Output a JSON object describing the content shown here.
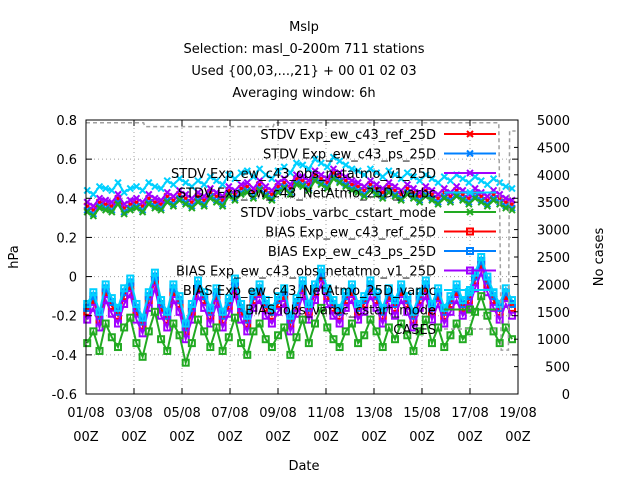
{
  "chart_data": {
    "type": "line",
    "title": "Mslp",
    "subtitle_lines": [
      "Selection: masl_0-200m    711 stations",
      "Used {00,03,...,21} + 00 01 02 03",
      "Averaging window:  6h"
    ],
    "xlabel": "Date",
    "ylabel": "hPa",
    "y2label": "No cases",
    "ylim": [
      -0.6,
      0.8
    ],
    "y2lim": [
      0,
      5000
    ],
    "xlim": [
      0,
      18
    ],
    "yticks": [
      "0.8",
      "0.6",
      "0.4",
      "0.2",
      "0",
      "-0.2",
      "-0.4",
      "-0.6"
    ],
    "y2ticks": [
      "5000",
      "4500",
      "4000",
      "3500",
      "3000",
      "2500",
      "2000",
      "1500",
      "1000",
      "500",
      "0"
    ],
    "xticks": [
      {
        "top": "01/08",
        "bottom": "00Z"
      },
      {
        "top": "03/08",
        "bottom": "00Z"
      },
      {
        "top": "05/08",
        "bottom": "00Z"
      },
      {
        "top": "07/08",
        "bottom": "00Z"
      },
      {
        "top": "09/08",
        "bottom": "00Z"
      },
      {
        "top": "11/08",
        "bottom": "00Z"
      },
      {
        "top": "13/08",
        "bottom": "00Z"
      },
      {
        "top": "15/08",
        "bottom": "00Z"
      },
      {
        "top": "17/08",
        "bottom": "00Z"
      },
      {
        "top": "19/08",
        "bottom": "00Z"
      }
    ],
    "grid": true,
    "legend_position": "top-right",
    "series": [
      {
        "name": "STDV Exp_ew_c43_ref_25D",
        "color": "#ff0000",
        "marker": "x",
        "axis": "y1",
        "values": [
          0.36,
          0.34,
          0.38,
          0.37,
          0.36,
          0.4,
          0.35,
          0.37,
          0.38,
          0.36,
          0.4,
          0.38,
          0.37,
          0.41,
          0.39,
          0.42,
          0.4,
          0.38,
          0.41,
          0.39,
          0.43,
          0.41,
          0.39,
          0.44,
          0.42,
          0.45,
          0.46,
          0.43,
          0.47,
          0.44,
          0.42,
          0.46,
          0.48,
          0.45,
          0.5,
          0.49,
          0.47,
          0.52,
          0.5,
          0.48,
          0.53,
          0.51,
          0.49,
          0.47,
          0.46,
          0.44,
          0.47,
          0.45,
          0.43,
          0.46,
          0.44,
          0.42,
          0.45,
          0.43,
          0.41,
          0.44,
          0.42,
          0.4,
          0.43,
          0.41,
          0.44,
          0.42,
          0.4,
          0.43,
          0.41,
          0.39,
          0.42,
          0.4,
          0.38,
          0.37
        ]
      },
      {
        "name": "STDV Exp_ew_c43_ps_25D",
        "color": "#0080ff",
        "marker": "x",
        "axis": "y1",
        "values": [
          0.34,
          0.32,
          0.36,
          0.35,
          0.34,
          0.38,
          0.33,
          0.35,
          0.36,
          0.34,
          0.38,
          0.36,
          0.35,
          0.39,
          0.37,
          0.4,
          0.38,
          0.36,
          0.39,
          0.37,
          0.41,
          0.39,
          0.37,
          0.42,
          0.4,
          0.43,
          0.44,
          0.41,
          0.45,
          0.42,
          0.4,
          0.44,
          0.46,
          0.43,
          0.48,
          0.47,
          0.45,
          0.5,
          0.48,
          0.46,
          0.51,
          0.49,
          0.47,
          0.45,
          0.44,
          0.42,
          0.45,
          0.43,
          0.41,
          0.44,
          0.42,
          0.4,
          0.43,
          0.41,
          0.39,
          0.42,
          0.4,
          0.38,
          0.41,
          0.39,
          0.42,
          0.4,
          0.38,
          0.41,
          0.39,
          0.37,
          0.4,
          0.38,
          0.36,
          0.35
        ]
      },
      {
        "name": "STDV Exp_ew_c43_obs_netatmo_v1_25D",
        "color": "#a000ff",
        "marker": "x",
        "axis": "y1",
        "values": [
          0.38,
          0.36,
          0.4,
          0.39,
          0.38,
          0.42,
          0.37,
          0.39,
          0.4,
          0.38,
          0.42,
          0.4,
          0.39,
          0.43,
          0.41,
          0.44,
          0.42,
          0.4,
          0.43,
          0.41,
          0.45,
          0.43,
          0.41,
          0.46,
          0.44,
          0.47,
          0.48,
          0.45,
          0.49,
          0.46,
          0.44,
          0.48,
          0.5,
          0.47,
          0.52,
          0.51,
          0.49,
          0.54,
          0.52,
          0.5,
          0.55,
          0.53,
          0.51,
          0.49,
          0.48,
          0.46,
          0.49,
          0.47,
          0.45,
          0.48,
          0.46,
          0.44,
          0.47,
          0.45,
          0.43,
          0.46,
          0.44,
          0.42,
          0.45,
          0.43,
          0.46,
          0.44,
          0.42,
          0.45,
          0.43,
          0.41,
          0.44,
          0.42,
          0.4,
          0.39
        ]
      },
      {
        "name": "STDV Exp_ew_c43_NetAtmo_25D_varbc",
        "color": "#00d0ff",
        "marker": "x",
        "axis": "y1",
        "values": [
          0.44,
          0.42,
          0.46,
          0.45,
          0.44,
          0.48,
          0.43,
          0.45,
          0.46,
          0.44,
          0.48,
          0.46,
          0.45,
          0.49,
          0.47,
          0.5,
          0.48,
          0.46,
          0.49,
          0.47,
          0.51,
          0.49,
          0.47,
          0.52,
          0.5,
          0.53,
          0.54,
          0.51,
          0.55,
          0.52,
          0.5,
          0.54,
          0.56,
          0.53,
          0.58,
          0.57,
          0.55,
          0.6,
          0.58,
          0.56,
          0.61,
          0.59,
          0.57,
          0.55,
          0.54,
          0.52,
          0.55,
          0.53,
          0.51,
          0.54,
          0.52,
          0.5,
          0.53,
          0.51,
          0.49,
          0.52,
          0.5,
          0.48,
          0.51,
          0.49,
          0.52,
          0.5,
          0.48,
          0.51,
          0.49,
          0.47,
          0.5,
          0.48,
          0.46,
          0.45
        ]
      },
      {
        "name": "STDV iobs_varbc_cstart_mode",
        "color": "#22aa22",
        "marker": "x",
        "axis": "y1",
        "values": [
          0.33,
          0.31,
          0.35,
          0.34,
          0.33,
          0.37,
          0.32,
          0.34,
          0.35,
          0.33,
          0.37,
          0.35,
          0.34,
          0.38,
          0.36,
          0.39,
          0.37,
          0.35,
          0.38,
          0.36,
          0.4,
          0.38,
          0.36,
          0.41,
          0.39,
          0.42,
          0.43,
          0.4,
          0.44,
          0.41,
          0.39,
          0.43,
          0.45,
          0.42,
          0.47,
          0.46,
          0.44,
          0.49,
          0.47,
          0.45,
          0.5,
          0.48,
          0.46,
          0.44,
          0.43,
          0.41,
          0.44,
          0.42,
          0.4,
          0.43,
          0.41,
          0.39,
          0.42,
          0.4,
          0.38,
          0.41,
          0.39,
          0.37,
          0.4,
          0.38,
          0.41,
          0.39,
          0.37,
          0.4,
          0.38,
          0.36,
          0.39,
          0.37,
          0.35,
          0.34
        ]
      },
      {
        "name": "BIAS Exp_ew_c43_ref_25D",
        "color": "#ff0000",
        "marker": "square",
        "axis": "y1",
        "values": [
          -0.18,
          -0.12,
          -0.22,
          -0.08,
          -0.15,
          -0.2,
          -0.1,
          -0.05,
          -0.18,
          -0.25,
          -0.12,
          -0.02,
          -0.16,
          -0.22,
          -0.08,
          -0.14,
          -0.28,
          -0.18,
          -0.06,
          -0.12,
          -0.2,
          -0.1,
          -0.22,
          -0.15,
          -0.05,
          -0.18,
          -0.24,
          -0.12,
          -0.08,
          -0.16,
          -0.2,
          -0.14,
          -0.1,
          -0.24,
          -0.15,
          -0.06,
          -0.18,
          -0.08,
          0.0,
          -0.1,
          -0.16,
          -0.2,
          -0.12,
          -0.08,
          -0.18,
          -0.14,
          -0.06,
          -0.12,
          -0.2,
          -0.1,
          -0.16,
          -0.08,
          -0.14,
          -0.22,
          -0.12,
          -0.06,
          -0.18,
          -0.1,
          -0.2,
          -0.14,
          -0.08,
          -0.16,
          -0.12,
          -0.02,
          0.06,
          -0.04,
          -0.12,
          -0.18,
          -0.1,
          -0.16
        ]
      },
      {
        "name": "BIAS Exp_ew_c43_ps_25D",
        "color": "#0080ff",
        "marker": "square",
        "axis": "y1",
        "values": [
          -0.16,
          -0.1,
          -0.2,
          -0.06,
          -0.13,
          -0.18,
          -0.08,
          -0.03,
          -0.16,
          -0.23,
          -0.1,
          0.0,
          -0.14,
          -0.2,
          -0.06,
          -0.12,
          -0.26,
          -0.16,
          -0.04,
          -0.1,
          -0.18,
          -0.08,
          -0.2,
          -0.13,
          -0.03,
          -0.16,
          -0.22,
          -0.1,
          -0.06,
          -0.14,
          -0.18,
          -0.12,
          -0.08,
          -0.22,
          -0.13,
          -0.04,
          -0.16,
          -0.06,
          0.02,
          -0.08,
          -0.14,
          -0.18,
          -0.1,
          -0.06,
          -0.16,
          -0.12,
          -0.04,
          -0.1,
          -0.18,
          -0.08,
          -0.14,
          -0.06,
          -0.12,
          -0.2,
          -0.1,
          -0.04,
          -0.16,
          -0.08,
          -0.18,
          -0.12,
          -0.06,
          -0.14,
          -0.1,
          0.0,
          0.08,
          -0.02,
          -0.1,
          -0.16,
          -0.08,
          -0.14
        ]
      },
      {
        "name": "BIAS Exp_ew_c43_obs_netatmo_v1_25D",
        "color": "#a000ff",
        "marker": "square",
        "axis": "y1",
        "values": [
          -0.22,
          -0.16,
          -0.26,
          -0.12,
          -0.19,
          -0.24,
          -0.14,
          -0.09,
          -0.22,
          -0.29,
          -0.16,
          -0.06,
          -0.2,
          -0.26,
          -0.12,
          -0.18,
          -0.32,
          -0.22,
          -0.1,
          -0.16,
          -0.24,
          -0.14,
          -0.26,
          -0.19,
          -0.09,
          -0.22,
          -0.28,
          -0.16,
          -0.12,
          -0.2,
          -0.24,
          -0.18,
          -0.14,
          -0.28,
          -0.19,
          -0.1,
          -0.22,
          -0.12,
          -0.04,
          -0.14,
          -0.2,
          -0.24,
          -0.16,
          -0.12,
          -0.22,
          -0.18,
          -0.1,
          -0.16,
          -0.24,
          -0.14,
          -0.2,
          -0.12,
          -0.18,
          -0.26,
          -0.16,
          -0.1,
          -0.22,
          -0.14,
          -0.24,
          -0.18,
          -0.12,
          -0.2,
          -0.16,
          -0.06,
          0.02,
          -0.08,
          -0.16,
          -0.22,
          -0.14,
          -0.2
        ]
      },
      {
        "name": "BIAS Exp_ew_c43_NetAtmo_25D_varbc",
        "color": "#00d0ff",
        "marker": "square",
        "axis": "y1",
        "values": [
          -0.14,
          -0.08,
          -0.18,
          -0.04,
          -0.11,
          -0.16,
          -0.06,
          -0.01,
          -0.14,
          -0.21,
          -0.08,
          0.02,
          -0.12,
          -0.18,
          -0.04,
          -0.1,
          -0.24,
          -0.14,
          -0.02,
          -0.08,
          -0.16,
          -0.06,
          -0.18,
          -0.11,
          -0.01,
          -0.14,
          -0.2,
          -0.08,
          -0.04,
          -0.12,
          -0.16,
          -0.1,
          -0.06,
          -0.2,
          -0.11,
          -0.02,
          -0.14,
          -0.04,
          0.04,
          -0.06,
          -0.12,
          -0.16,
          -0.08,
          -0.04,
          -0.14,
          -0.1,
          -0.02,
          -0.08,
          -0.16,
          -0.06,
          -0.12,
          -0.04,
          -0.1,
          -0.18,
          -0.08,
          -0.02,
          -0.14,
          -0.06,
          -0.16,
          -0.1,
          -0.04,
          -0.12,
          -0.08,
          0.02,
          0.1,
          0.0,
          -0.08,
          -0.14,
          -0.06,
          -0.12
        ]
      },
      {
        "name": "BIAS iobs_varbc_cstart_mode",
        "color": "#22aa22",
        "marker": "square",
        "axis": "y1",
        "values": [
          -0.34,
          -0.28,
          -0.38,
          -0.24,
          -0.31,
          -0.36,
          -0.26,
          -0.21,
          -0.34,
          -0.41,
          -0.28,
          -0.18,
          -0.32,
          -0.38,
          -0.24,
          -0.3,
          -0.44,
          -0.34,
          -0.22,
          -0.28,
          -0.36,
          -0.26,
          -0.38,
          -0.31,
          -0.21,
          -0.34,
          -0.4,
          -0.28,
          -0.24,
          -0.32,
          -0.36,
          -0.3,
          -0.26,
          -0.4,
          -0.31,
          -0.22,
          -0.34,
          -0.24,
          -0.16,
          -0.26,
          -0.32,
          -0.36,
          -0.28,
          -0.24,
          -0.34,
          -0.3,
          -0.22,
          -0.28,
          -0.36,
          -0.26,
          -0.32,
          -0.24,
          -0.3,
          -0.38,
          -0.28,
          -0.22,
          -0.34,
          -0.26,
          -0.36,
          -0.3,
          -0.24,
          -0.32,
          -0.28,
          -0.18,
          -0.1,
          -0.2,
          -0.28,
          -0.34,
          -0.26,
          -0.32
        ]
      },
      {
        "name": "CASES",
        "color": "#a0a0a0",
        "marker": "none",
        "axis": "y2",
        "dashed": true,
        "x": [
          0,
          2.4,
          2.45,
          7.8,
          7.85,
          17.2,
          17.3,
          17.6,
          17.65,
          17.9
        ],
        "values": [
          4950,
          4950,
          4880,
          4880,
          4950,
          4950,
          800,
          800,
          4800,
          4800
        ]
      }
    ]
  }
}
